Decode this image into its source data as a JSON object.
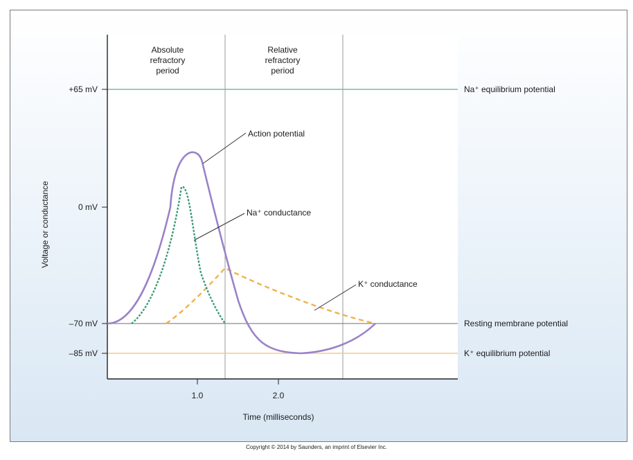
{
  "figure": {
    "ylabel": "Voltage or conductance",
    "xlabel": "Time (milliseconds)",
    "y_ticks": [
      {
        "label": "+65 mV",
        "value": 65
      },
      {
        "label": "0 mV",
        "value": 0
      },
      {
        "label": "–70 mV",
        "value": -70
      },
      {
        "label": "–85 mV",
        "value": -85
      }
    ],
    "x_ticks": [
      {
        "label": "1.0",
        "value": 1.0
      },
      {
        "label": "2.0",
        "value": 2.0
      }
    ],
    "periods": {
      "absolute": [
        "Absolute",
        "refractory",
        "period"
      ],
      "relative": [
        "Relative",
        "refractory",
        "period"
      ]
    },
    "reference_lines": {
      "na_equilibrium": "Na⁺ equilibrium potential",
      "resting": "Resting membrane potential",
      "k_equilibrium": "K⁺ equilibrium potential"
    },
    "curve_labels": {
      "action_potential": "Action potential",
      "na_conductance": "Na⁺ conductance",
      "k_conductance": "K⁺ conductance"
    },
    "colors": {
      "action_potential": "#9a82c8",
      "na_conductance": "#3d9b78",
      "k_conductance": "#f0b24a",
      "na_equilibrium_line": "#7fb8a2",
      "k_equilibrium_line": "#f5c98a",
      "resting_line": "#8a8a8a",
      "background_top": "#ffffff",
      "background_bottom": "#dce9f5"
    }
  },
  "copyright": "Copyright © 2014 by Saunders, an imprint of Elsevier Inc."
}
